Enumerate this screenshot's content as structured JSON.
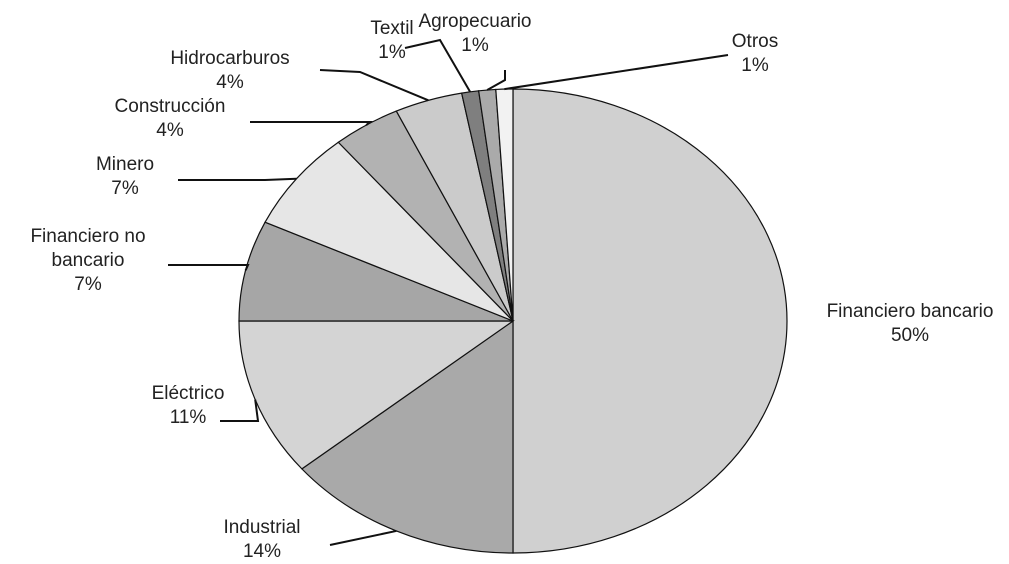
{
  "chart_data": {
    "type": "pie",
    "categories": [
      "Financiero bancario",
      "Industrial",
      "Eléctrico",
      "Financiero no bancario",
      "Minero",
      "Construcción",
      "Hidrocarburos",
      "Textil",
      "Agropecuario",
      "Otros"
    ],
    "values": [
      50,
      14,
      11,
      7,
      7,
      4,
      4,
      1,
      1,
      1
    ],
    "value_labels": [
      "50%",
      "14%",
      "11%",
      "7%",
      "7%",
      "4%",
      "4%",
      "1%",
      "1%",
      "1%"
    ],
    "colors": [
      "#d0d0d0",
      "#a9a9a9",
      "#d4d4d4",
      "#a6a6a6",
      "#e6e6e6",
      "#b2b2b2",
      "#cbcbcb",
      "#7f7f7f",
      "#aaaaaa",
      "#f2f2f2"
    ]
  }
}
